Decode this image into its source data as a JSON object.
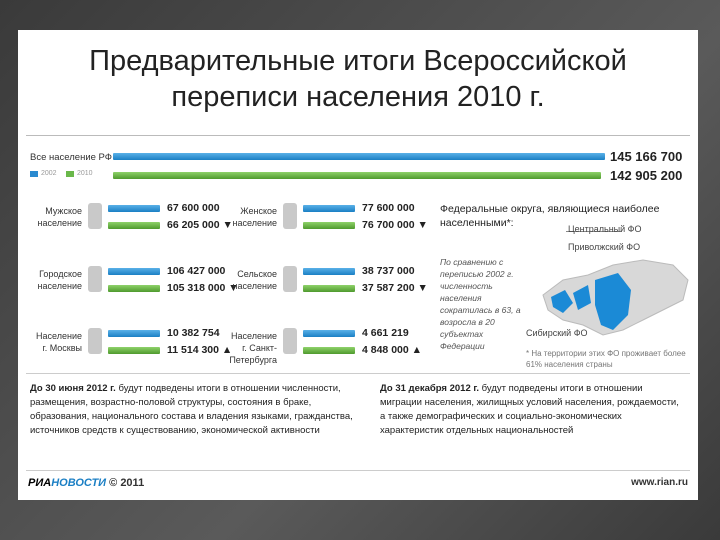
{
  "header": {
    "title": [
      "Предварительные итоги Всероссийской",
      "переписи населения 2010 г."
    ]
  },
  "total": {
    "label": "Все население РФ",
    "legend": [
      "2002",
      "2010"
    ],
    "v2002": "145 166 700",
    "v2010": "142 905 200"
  },
  "groups": [
    {
      "label": "Мужское население",
      "v2002": "67 600 000",
      "v2010": "66 205 000 ▼"
    },
    {
      "label": "Женское население",
      "v2002": "77 600 000",
      "v2010": "76 700 000 ▼"
    },
    {
      "label": "Городское население",
      "v2002": "106 427 000",
      "v2010": "105 318 000 ▼"
    },
    {
      "label": "Сельское население",
      "v2002": "38 737 000",
      "v2010": "37 587 200 ▼"
    },
    {
      "label": "Население г. Москвы",
      "v2002": "10 382 754",
      "v2010": "11 514 300 ▲"
    },
    {
      "label": "Население г. Санкт-Петербурга",
      "v2002": "4 661 219",
      "v2010": "4 848 000 ▲"
    }
  ],
  "districts": {
    "title": "Федеральные округа, являющиеся наиболее населенными*:",
    "items": [
      "Центральный ФО",
      "Приволжский ФО",
      "Сибирский ФО"
    ],
    "comparison": "По сравнению с переписью 2002 г. численность населения сократилась в 63, а возросла в 20 субъектах Федерации",
    "footnote": "* На территории этих ФО проживает более 61% населения страны"
  },
  "notes": [
    {
      "bold": "До 30 июня 2012 г.",
      "text": "будут подведены итоги в отношении численности, размещения, возрастно-половой структуры, состояния в браке, образования, национального состава и владения языками, гражданства, источников средств к существованию, экономической активности"
    },
    {
      "bold": "До 31 декабря 2012 г.",
      "text": "будут подведены итоги в отношении миграции населения, жилищных условий населения, рождаемости, а также демографических и социально-экономических характеристик отдельных национальностей"
    }
  ],
  "footer": {
    "brand_a": "РИА",
    "brand_b": "НОВОСТИ",
    "copyright": "© 2011",
    "url": "www.rian.ru"
  }
}
